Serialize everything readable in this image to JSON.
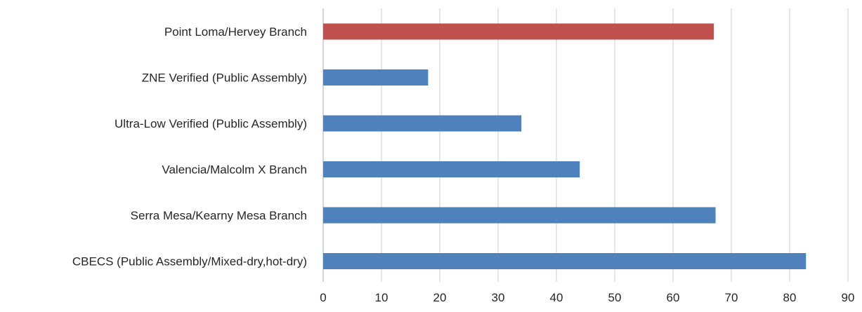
{
  "chart_data": {
    "type": "bar",
    "orientation": "horizontal",
    "title": "",
    "xlabel": "",
    "ylabel": "",
    "categories": [
      "Point Loma/Hervey Branch",
      "ZNE Verified (Public Assembly)",
      "Ultra-Low Verified (Public Assembly)",
      "Valencia/Malcolm X Branch",
      "Serra Mesa/Kearny Mesa Branch",
      "CBECS (Public Assembly/Mixed-dry,hot-dry)"
    ],
    "values": [
      67,
      18,
      34,
      44,
      67.3,
      82.8
    ],
    "bar_colors": [
      "#C0504D",
      "#4F81BD",
      "#4F81BD",
      "#4F81BD",
      "#4F81BD",
      "#4F81BD"
    ],
    "xlim": [
      0,
      90
    ],
    "x_ticks": [
      "0",
      "10",
      "20",
      "30",
      "40",
      "50",
      "60",
      "70",
      "80",
      "90"
    ],
    "grid": true,
    "legend": "none"
  }
}
